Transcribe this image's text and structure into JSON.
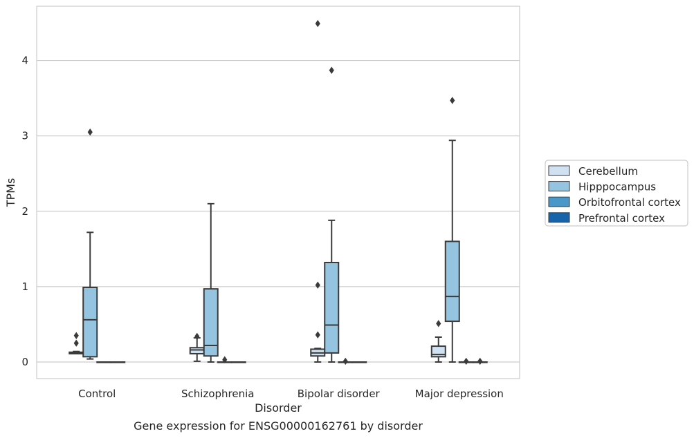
{
  "caption": "Gene expression for ENSG00000162761 by disorder",
  "colors": {
    "Cerebellum": "#d0e1f2",
    "Hipppocampus": "#94c4df",
    "Orbitofrontal cortex": "#4a98c9",
    "Prefrontal cortex": "#1764ab",
    "line": "#3a3a3a",
    "grid": "#cccccc",
    "frame": "#cccccc"
  },
  "chart_data": {
    "type": "box",
    "xlabel": "Disorder",
    "ylabel": "TPMs",
    "ylim": [
      -0.22,
      4.72
    ],
    "yticks": [
      0,
      1,
      2,
      3,
      4
    ],
    "grid": true,
    "legend_position": "right-center",
    "categories": [
      "Control",
      "Schizophrenia",
      "Bipolar disorder",
      "Major depression"
    ],
    "series": [
      {
        "name": "Cerebellum",
        "boxes": [
          {
            "whislo": 0.11,
            "q1": 0.11,
            "med": 0.12,
            "q3": 0.13,
            "whishi": 0.14,
            "fliers": [
              0.25,
              0.35
            ]
          },
          {
            "whislo": 0.01,
            "q1": 0.11,
            "med": 0.16,
            "q3": 0.19,
            "whishi": 0.32,
            "fliers": [
              0.34
            ]
          },
          {
            "whislo": 0.0,
            "q1": 0.08,
            "med": 0.12,
            "q3": 0.17,
            "whishi": 0.18,
            "fliers": [
              0.36,
              1.02,
              4.49
            ]
          },
          {
            "whislo": 0.0,
            "q1": 0.07,
            "med": 0.1,
            "q3": 0.21,
            "whishi": 0.33,
            "fliers": [
              0.51
            ]
          }
        ]
      },
      {
        "name": "Hipppocampus",
        "boxes": [
          {
            "whislo": 0.04,
            "q1": 0.07,
            "med": 0.56,
            "q3": 0.99,
            "whishi": 1.72,
            "fliers": [
              3.05
            ]
          },
          {
            "whislo": 0.0,
            "q1": 0.08,
            "med": 0.22,
            "q3": 0.97,
            "whishi": 2.1,
            "fliers": []
          },
          {
            "whislo": 0.0,
            "q1": 0.12,
            "med": 0.49,
            "q3": 1.32,
            "whishi": 1.88,
            "fliers": [
              3.87
            ]
          },
          {
            "whislo": 0.0,
            "q1": 0.54,
            "med": 0.87,
            "q3": 1.6,
            "whishi": 2.94,
            "fliers": [
              3.47
            ]
          }
        ]
      },
      {
        "name": "Orbitofrontal cortex",
        "boxes": [
          {
            "whislo": 0.0,
            "q1": 0.0,
            "med": 0.0,
            "q3": 0.0,
            "whishi": 0.0,
            "fliers": []
          },
          {
            "whislo": 0.0,
            "q1": 0.0,
            "med": 0.0,
            "q3": 0.0,
            "whishi": 0.0,
            "fliers": [
              0.03
            ]
          },
          {
            "whislo": 0.0,
            "q1": 0.0,
            "med": 0.0,
            "q3": 0.0,
            "whishi": 0.0,
            "fliers": [
              0.01
            ]
          },
          {
            "whislo": 0.0,
            "q1": 0.0,
            "med": 0.0,
            "q3": 0.0,
            "whishi": 0.0,
            "fliers": [
              0.01
            ]
          }
        ]
      },
      {
        "name": "Prefrontal cortex",
        "boxes": [
          {
            "whislo": 0.0,
            "q1": 0.0,
            "med": 0.0,
            "q3": 0.0,
            "whishi": 0.0,
            "fliers": []
          },
          {
            "whislo": 0.0,
            "q1": 0.0,
            "med": 0.0,
            "q3": 0.0,
            "whishi": 0.0,
            "fliers": []
          },
          {
            "whislo": 0.0,
            "q1": 0.0,
            "med": 0.0,
            "q3": 0.0,
            "whishi": 0.0,
            "fliers": []
          },
          {
            "whislo": 0.0,
            "q1": 0.0,
            "med": 0.0,
            "q3": 0.0,
            "whishi": 0.0,
            "fliers": [
              0.01
            ]
          }
        ]
      }
    ]
  }
}
